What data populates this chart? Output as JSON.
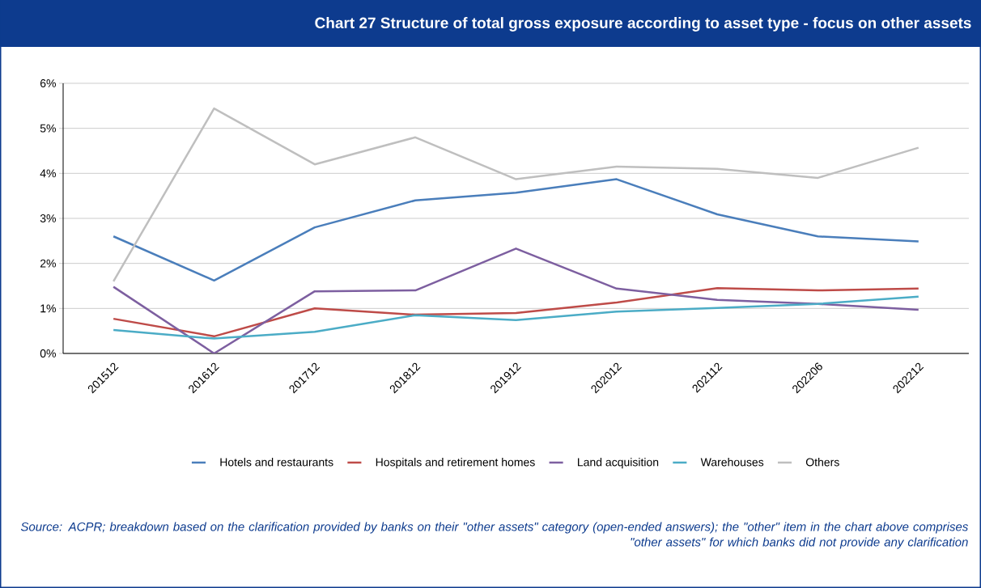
{
  "chart_data": {
    "type": "line",
    "title": "Chart 27 Structure of total gross exposure according to asset type - focus on other assets",
    "categories": [
      "201512",
      "201612",
      "201712",
      "201812",
      "201912",
      "202012",
      "202112",
      "202206",
      "202212"
    ],
    "series": [
      {
        "name": "Hotels and restaurants",
        "color": "#4a7ebb",
        "values": [
          2.6,
          1.62,
          2.8,
          3.4,
          3.57,
          3.87,
          3.09,
          2.6,
          2.49
        ]
      },
      {
        "name": "Hospitals and retirement homes",
        "color": "#be4b48",
        "values": [
          0.77,
          0.38,
          1.0,
          0.86,
          0.9,
          1.13,
          1.45,
          1.4,
          1.44
        ]
      },
      {
        "name": "Land acquisition",
        "color": "#7d5fa0",
        "values": [
          1.48,
          0.0,
          1.38,
          1.4,
          2.33,
          1.44,
          1.19,
          1.1,
          0.97
        ]
      },
      {
        "name": "Warehouses",
        "color": "#4bacc6",
        "values": [
          0.52,
          0.33,
          0.48,
          0.85,
          0.74,
          0.93,
          1.01,
          1.1,
          1.26
        ]
      },
      {
        "name": "Others",
        "color": "#bfbfbf",
        "values": [
          1.6,
          5.44,
          4.2,
          4.8,
          3.87,
          4.15,
          4.1,
          3.9,
          4.57
        ]
      }
    ],
    "ylim": [
      0,
      6
    ],
    "yticks": [
      {
        "value": 0,
        "label": "0%"
      },
      {
        "value": 1,
        "label": "1%"
      },
      {
        "value": 2,
        "label": "2%"
      },
      {
        "value": 3,
        "label": "3%"
      },
      {
        "value": 4,
        "label": "4%"
      },
      {
        "value": 5,
        "label": "5%"
      },
      {
        "value": 6,
        "label": "6%"
      }
    ],
    "grid": "y",
    "legend": "bottom",
    "annotations": [
      "Source: ACPR; breakdown based on the clarification provided by banks on their \"other assets\" category (open-ended answers); the \"other\" item in the chart above comprises \"other assets\" for which banks did not provide any clarification"
    ]
  }
}
